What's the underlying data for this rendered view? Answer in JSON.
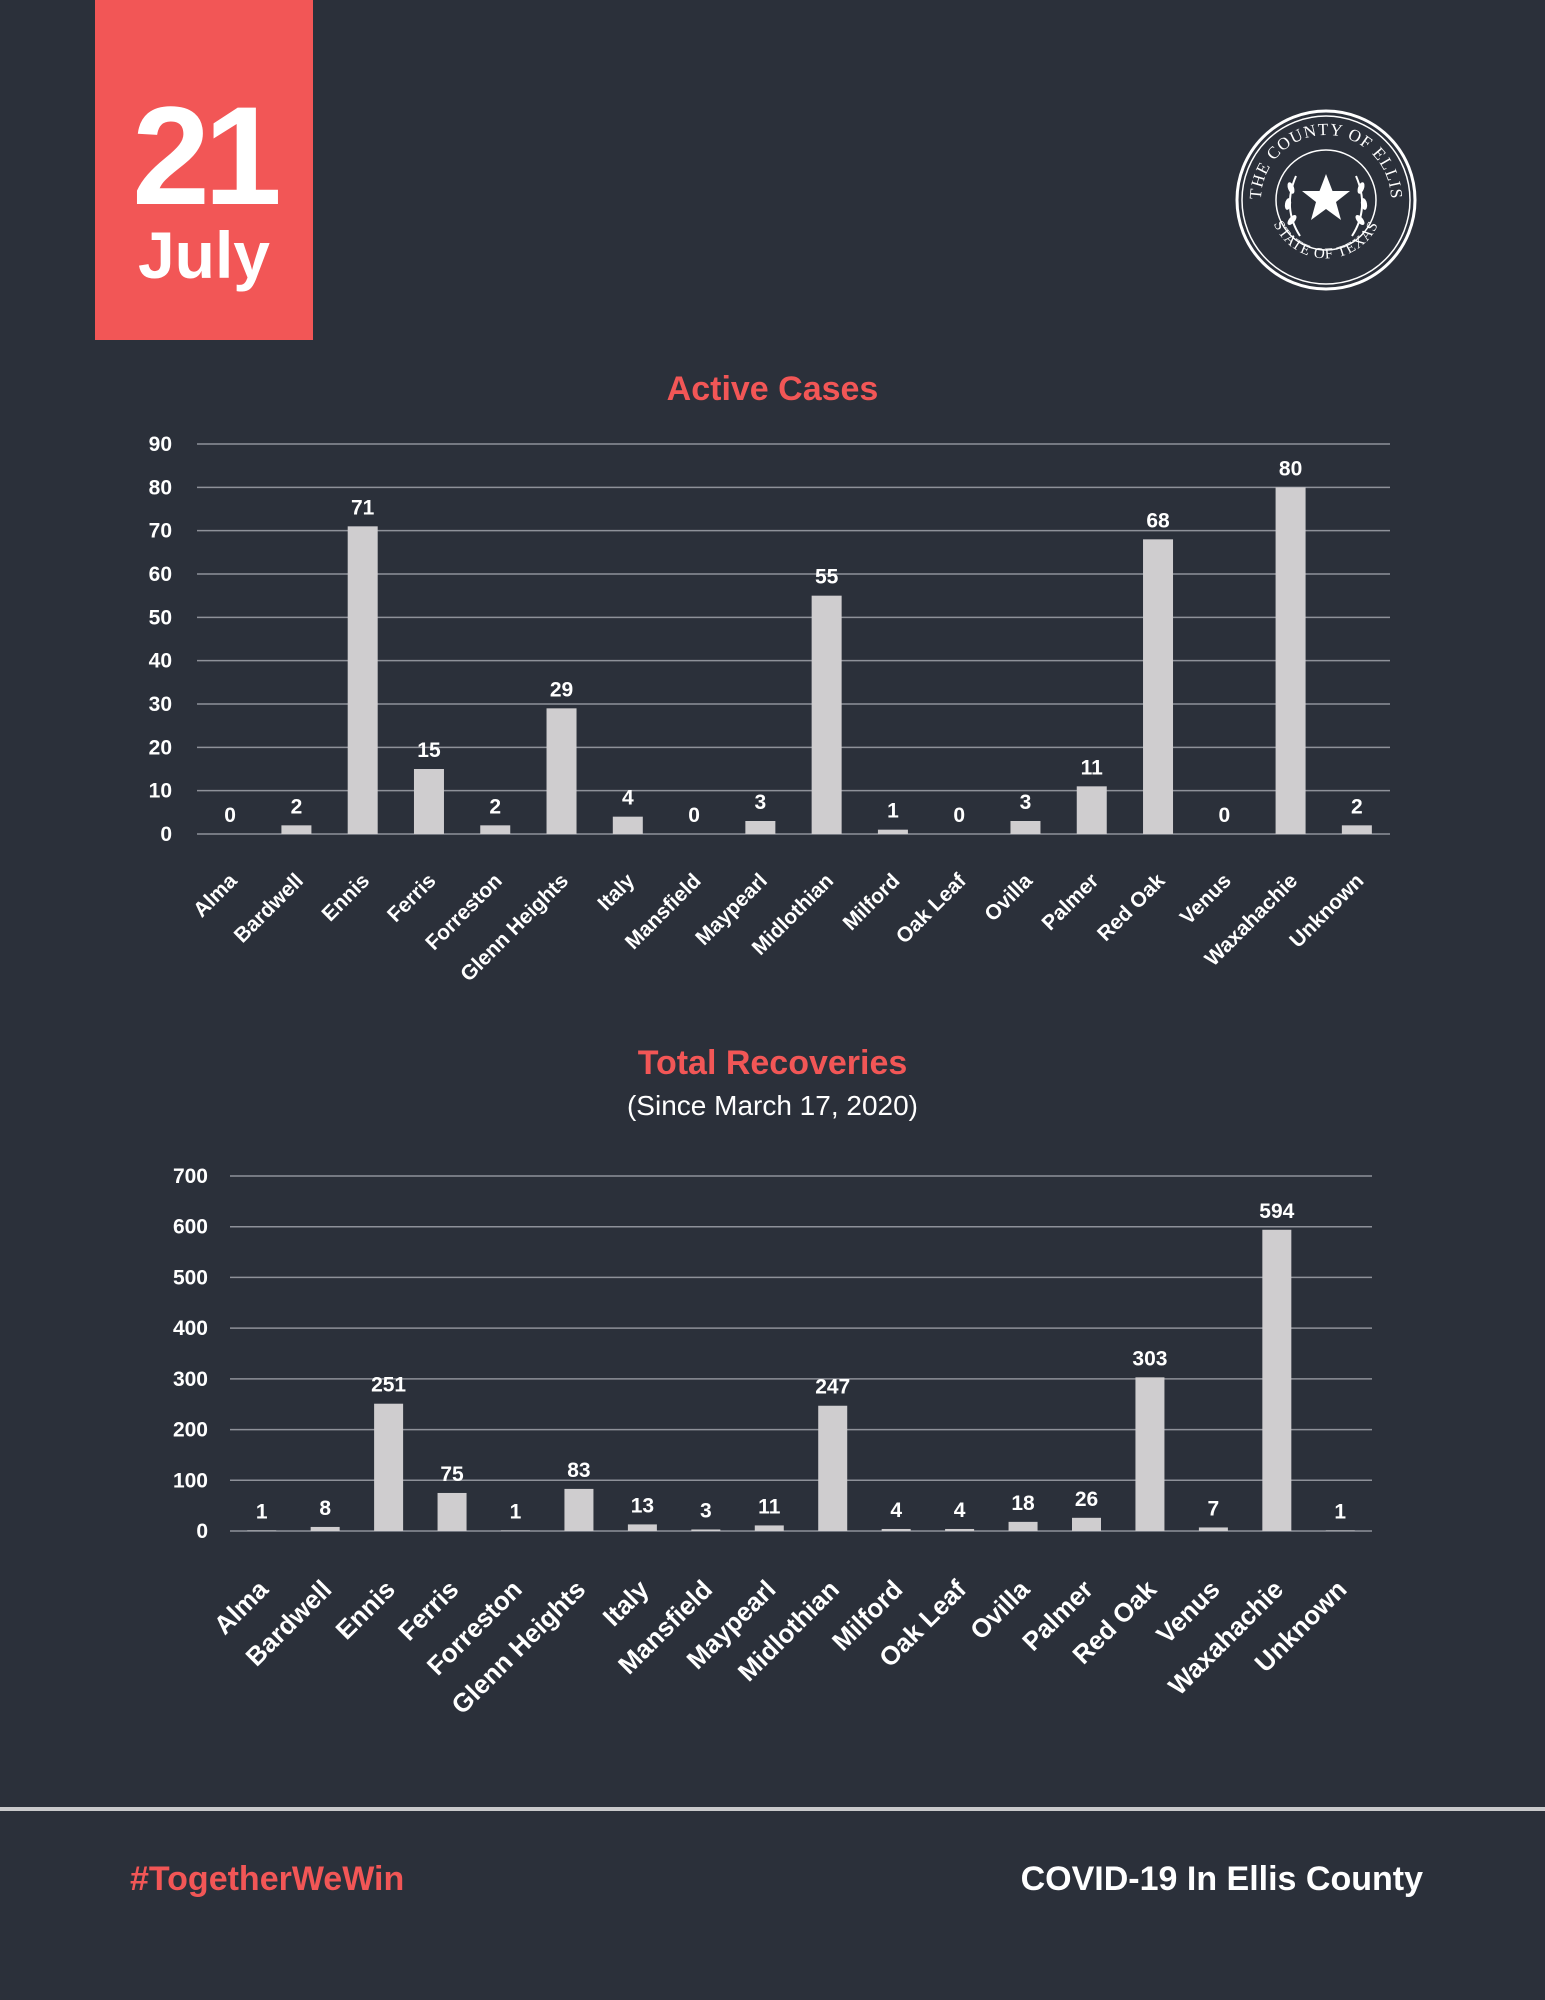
{
  "badge": {
    "day": "21",
    "month": "July"
  },
  "seal": {
    "top_text": "THE COUNTY OF ELLIS",
    "bottom_text": "STATE OF TEXAS"
  },
  "footer": {
    "hashtag": "#TogetherWeWin",
    "title": "COVID-19 In Ellis County"
  },
  "colors": {
    "background": "#2b303a",
    "accent": "#f25656",
    "bar": "#cfcdcf",
    "grid": "#8e9199"
  },
  "chart_data": [
    {
      "type": "bar",
      "title": "Active Cases",
      "subtitle": "",
      "xlabel": "",
      "ylabel": "",
      "ylim": [
        0,
        90
      ],
      "yticks": [
        0,
        10,
        20,
        30,
        40,
        50,
        60,
        70,
        80,
        90
      ],
      "grid": true,
      "categories": [
        "Alma",
        "Bardwell",
        "Ennis",
        "Ferris",
        "Forreston",
        "Glenn Heights",
        "Italy",
        "Mansfield",
        "Maypearl",
        "Midlothian",
        "Milford",
        "Oak Leaf",
        "Ovilla",
        "Palmer",
        "Red Oak",
        "Venus",
        "Waxahachie",
        "Unknown"
      ],
      "values": [
        0,
        2,
        71,
        15,
        2,
        29,
        4,
        0,
        3,
        55,
        1,
        0,
        3,
        11,
        68,
        0,
        80,
        2
      ]
    },
    {
      "type": "bar",
      "title": "Total Recoveries",
      "subtitle": "(Since March 17, 2020)",
      "xlabel": "",
      "ylabel": "",
      "ylim": [
        0,
        700
      ],
      "yticks": [
        0,
        100,
        200,
        300,
        400,
        500,
        600,
        700
      ],
      "grid": true,
      "categories": [
        "Alma",
        "Bardwell",
        "Ennis",
        "Ferris",
        "Forreston",
        "Glenn Heights",
        "Italy",
        "Mansfield",
        "Maypearl",
        "Midlothian",
        "Milford",
        "Oak Leaf",
        "Ovilla",
        "Palmer",
        "Red Oak",
        "Venus",
        "Waxahachie",
        "Unknown"
      ],
      "values": [
        1,
        8,
        251,
        75,
        1,
        83,
        13,
        3,
        11,
        247,
        4,
        4,
        18,
        26,
        303,
        7,
        594,
        1
      ]
    }
  ]
}
